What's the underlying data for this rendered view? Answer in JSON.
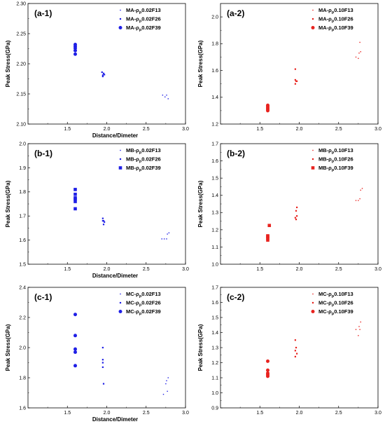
{
  "chart_data": [
    {
      "panel": "(a-1)",
      "type": "scatter",
      "xlabel": "Distance/Dimeter",
      "ylabel": "Peak Stress(GPa)",
      "xlim": [
        1.0,
        3.0
      ],
      "ylim": [
        2.1,
        2.3
      ],
      "xticks": [
        "1.5",
        "2.0",
        "2.5",
        "3.0"
      ],
      "yticks": [
        "2.10",
        "2.15",
        "2.20",
        "2.25",
        "2.30"
      ],
      "yticks_values": [
        2.1,
        2.15,
        2.2,
        2.25,
        2.3
      ],
      "legend_position": "top-right",
      "color": "#1f1fe6",
      "series": [
        {
          "name": "MA-ρ_p0.02F13",
          "legend_main": "MA-ρ",
          "legend_sub": "p",
          "legend_tail": "0.02F13",
          "marker": "small",
          "points": [
            [
              2.71,
              2.148
            ],
            [
              2.74,
              2.145
            ],
            [
              2.76,
              2.148
            ],
            [
              2.78,
              2.142
            ]
          ]
        },
        {
          "name": "MA-ρ_p0.02F26",
          "legend_main": "MA-ρ",
          "legend_sub": "p",
          "legend_tail": "0.02F26",
          "marker": "medium",
          "points": [
            [
              1.94,
              2.186
            ],
            [
              1.95,
              2.181
            ],
            [
              1.96,
              2.184
            ],
            [
              1.97,
              2.182
            ],
            [
              1.95,
              2.179
            ]
          ]
        },
        {
          "name": "MA-ρ_p0.02F39",
          "legend_main": "MA-ρ",
          "legend_sub": "p",
          "legend_tail": "0.02F39",
          "marker": "circle",
          "points": [
            [
              1.6,
              2.232
            ],
            [
              1.6,
              2.229
            ],
            [
              1.6,
              2.226
            ],
            [
              1.6,
              2.222
            ],
            [
              1.6,
              2.216
            ]
          ]
        }
      ]
    },
    {
      "panel": "(a-2)",
      "type": "scatter",
      "xlabel": "",
      "ylabel": "Peak Stress(GPa)",
      "xlim": [
        1.0,
        3.0
      ],
      "ylim": [
        1.2,
        2.1
      ],
      "xticks": [
        "1.5",
        "2.0",
        "2.5",
        "3.0"
      ],
      "yticks": [
        "1.2",
        "1.4",
        "1.6",
        "1.8",
        "2.0"
      ],
      "yticks_values": [
        1.2,
        1.4,
        1.6,
        1.8,
        2.0
      ],
      "legend_position": "top-right",
      "color": "#e8231f",
      "series": [
        {
          "name": "MA-ρ_p0.10F13",
          "legend_main": "MA-ρ",
          "legend_sub": "p",
          "legend_tail": "0.10F13",
          "marker": "small",
          "points": [
            [
              2.72,
              1.7
            ],
            [
              2.75,
              1.69
            ],
            [
              2.77,
              1.81
            ],
            [
              2.78,
              1.74
            ],
            [
              2.76,
              1.73
            ]
          ]
        },
        {
          "name": "MA-ρ_p0.10F26",
          "legend_main": "MA-ρ",
          "legend_sub": "p",
          "legend_tail": "0.10F26",
          "marker": "medium",
          "points": [
            [
              1.95,
              1.61
            ],
            [
              1.95,
              1.53
            ],
            [
              1.96,
              1.52
            ],
            [
              1.97,
              1.52
            ],
            [
              1.95,
              1.5
            ]
          ]
        },
        {
          "name": "MA-ρ_p0.10F39",
          "legend_main": "MA-ρ",
          "legend_sub": "p",
          "legend_tail": "0.10F39",
          "marker": "circle",
          "points": [
            [
              1.6,
              1.34
            ],
            [
              1.6,
              1.32
            ],
            [
              1.6,
              1.31
            ],
            [
              1.6,
              1.3
            ],
            [
              1.6,
              1.33
            ]
          ]
        }
      ]
    },
    {
      "panel": "(b-1)",
      "type": "scatter",
      "xlabel": "Distance/Dimeter",
      "ylabel": "Peak Stress(GPa)",
      "xlim": [
        1.0,
        3.0
      ],
      "ylim": [
        1.5,
        2.0
      ],
      "xticks": [
        "1.5",
        "2.0",
        "2.5",
        "3.0"
      ],
      "yticks": [
        "1.5",
        "1.6",
        "1.7",
        "1.8",
        "1.9",
        "2.0"
      ],
      "yticks_values": [
        1.5,
        1.6,
        1.7,
        1.8,
        1.9,
        2.0
      ],
      "legend_position": "top-right",
      "color": "#1f1fe6",
      "series": [
        {
          "name": "MB-ρ_p0.02F13",
          "legend_main": "MB-ρ",
          "legend_sub": "p",
          "legend_tail": "0.02F13",
          "marker": "small",
          "points": [
            [
              2.7,
              1.605
            ],
            [
              2.73,
              1.605
            ],
            [
              2.76,
              1.605
            ],
            [
              2.77,
              1.625
            ],
            [
              2.79,
              1.63
            ]
          ]
        },
        {
          "name": "MB-ρ_p0.02F26",
          "legend_main": "MB-ρ",
          "legend_sub": "p",
          "legend_tail": "0.02F26",
          "marker": "medium",
          "points": [
            [
              1.95,
              1.69
            ],
            [
              1.96,
              1.68
            ],
            [
              1.97,
              1.675
            ],
            [
              1.95,
              1.68
            ],
            [
              1.96,
              1.665
            ]
          ]
        },
        {
          "name": "MB-ρ_p0.02F39",
          "legend_main": "MB-ρ",
          "legend_sub": "p",
          "legend_tail": "0.02F39",
          "marker": "square",
          "points": [
            [
              1.6,
              1.81
            ],
            [
              1.6,
              1.79
            ],
            [
              1.6,
              1.775
            ],
            [
              1.6,
              1.76
            ],
            [
              1.6,
              1.73
            ],
            [
              1.6,
              1.77
            ]
          ]
        }
      ]
    },
    {
      "panel": "(b-2)",
      "type": "scatter",
      "xlabel": "",
      "ylabel": "Peak Stress(GPa)",
      "xlim": [
        1.0,
        3.0
      ],
      "ylim": [
        1.0,
        1.7
      ],
      "xticks": [
        "1.5",
        "2.0",
        "2.5",
        "3.0"
      ],
      "yticks": [
        "1.0",
        "1.1",
        "1.2",
        "1.3",
        "1.4",
        "1.5",
        "1.6",
        "1.7"
      ],
      "yticks_values": [
        1.0,
        1.1,
        1.2,
        1.3,
        1.4,
        1.5,
        1.6,
        1.7
      ],
      "legend_position": "top-right",
      "color": "#e8231f",
      "series": [
        {
          "name": "MB-ρ_p0.10F13",
          "legend_main": "MB-ρ",
          "legend_sub": "p",
          "legend_tail": "0.10F13",
          "marker": "small",
          "points": [
            [
              2.72,
              1.37
            ],
            [
              2.75,
              1.37
            ],
            [
              2.77,
              1.38
            ],
            [
              2.78,
              1.43
            ],
            [
              2.8,
              1.44
            ]
          ]
        },
        {
          "name": "MB-ρ_p0.10F26",
          "legend_main": "MB-ρ",
          "legend_sub": "p",
          "legend_tail": "0.10F26",
          "marker": "medium",
          "points": [
            [
              1.95,
              1.27
            ],
            [
              1.96,
              1.26
            ],
            [
              1.97,
              1.28
            ],
            [
              1.96,
              1.31
            ],
            [
              1.97,
              1.33
            ]
          ]
        },
        {
          "name": "MB-ρ_p0.10F39",
          "legend_main": "MB-ρ",
          "legend_sub": "p",
          "legend_tail": "0.10F39",
          "marker": "square",
          "points": [
            [
              1.6,
              1.16
            ],
            [
              1.6,
              1.15
            ],
            [
              1.6,
              1.14
            ],
            [
              1.6,
              1.165
            ],
            [
              1.62,
              1.225
            ]
          ]
        }
      ]
    },
    {
      "panel": "(c-1)",
      "type": "scatter",
      "xlabel": "Distance/Dimeter",
      "ylabel": "Peak Stress(GPa)",
      "xlim": [
        1.0,
        3.0
      ],
      "ylim": [
        1.6,
        2.4
      ],
      "xticks": [
        "1.5",
        "2.0",
        "2.5",
        "3.0"
      ],
      "yticks": [
        "1.6",
        "1.8",
        "2.0",
        "2.2",
        "2.4"
      ],
      "yticks_values": [
        1.6,
        1.8,
        2.0,
        2.2,
        2.4
      ],
      "legend_position": "top-right",
      "color": "#1f1fe6",
      "series": [
        {
          "name": "MC-ρ_p0.02F13",
          "legend_main": "MC-ρ",
          "legend_sub": "p",
          "legend_tail": "0.02F13",
          "marker": "small",
          "points": [
            [
              2.72,
              1.69
            ],
            [
              2.75,
              1.76
            ],
            [
              2.77,
              1.71
            ],
            [
              2.78,
              1.8
            ],
            [
              2.76,
              1.78
            ]
          ]
        },
        {
          "name": "MC-ρ_p0.02F26",
          "legend_main": "MC-ρ",
          "legend_sub": "p",
          "legend_tail": "0.02F26",
          "marker": "medium",
          "points": [
            [
              1.95,
              2.0
            ],
            [
              1.95,
              1.92
            ],
            [
              1.95,
              1.9
            ],
            [
              1.95,
              1.87
            ],
            [
              1.96,
              1.76
            ]
          ]
        },
        {
          "name": "MC-ρ_p0.02F39",
          "legend_main": "MC-ρ",
          "legend_sub": "p",
          "legend_tail": "0.02F39",
          "marker": "circle",
          "points": [
            [
              1.6,
              2.22
            ],
            [
              1.6,
              2.08
            ],
            [
              1.6,
              1.99
            ],
            [
              1.6,
              1.97
            ],
            [
              1.6,
              1.88
            ]
          ]
        }
      ]
    },
    {
      "panel": "(c-2)",
      "type": "scatter",
      "xlabel": "",
      "ylabel": "Peak Stress(GPa)",
      "xlim": [
        1.0,
        3.0
      ],
      "ylim": [
        0.9,
        1.7
      ],
      "xticks": [
        "1.5",
        "2.0",
        "2.5",
        "3.0"
      ],
      "yticks": [
        "0.9",
        "1.0",
        "1.1",
        "1.2",
        "1.3",
        "1.4",
        "1.5",
        "1.6",
        "1.7"
      ],
      "yticks_values": [
        0.9,
        1.0,
        1.1,
        1.2,
        1.3,
        1.4,
        1.5,
        1.6,
        1.7
      ],
      "legend_position": "top-right",
      "color": "#e8231f",
      "series": [
        {
          "name": "MC-ρ_p0.10F13",
          "legend_main": "MC-ρ",
          "legend_sub": "p",
          "legend_tail": "0.10F13",
          "marker": "small",
          "points": [
            [
              2.72,
              1.42
            ],
            [
              2.75,
              1.38
            ],
            [
              2.77,
              1.42
            ],
            [
              2.78,
              1.47
            ],
            [
              2.76,
              1.44
            ]
          ]
        },
        {
          "name": "MC-ρ_p0.10F26",
          "legend_main": "MC-ρ",
          "legend_sub": "p",
          "legend_tail": "0.10F26",
          "marker": "medium",
          "points": [
            [
              1.95,
              1.35
            ],
            [
              1.96,
              1.3
            ],
            [
              1.95,
              1.28
            ],
            [
              1.97,
              1.26
            ],
            [
              1.95,
              1.24
            ]
          ]
        },
        {
          "name": "MC-ρ_p0.10F39",
          "legend_main": "MC-ρ",
          "legend_sub": "p",
          "legend_tail": "0.10F39",
          "marker": "circle",
          "points": [
            [
              1.6,
              1.21
            ],
            [
              1.6,
              1.15
            ],
            [
              1.6,
              1.13
            ],
            [
              1.6,
              1.12
            ],
            [
              1.6,
              1.11
            ]
          ]
        }
      ]
    }
  ]
}
